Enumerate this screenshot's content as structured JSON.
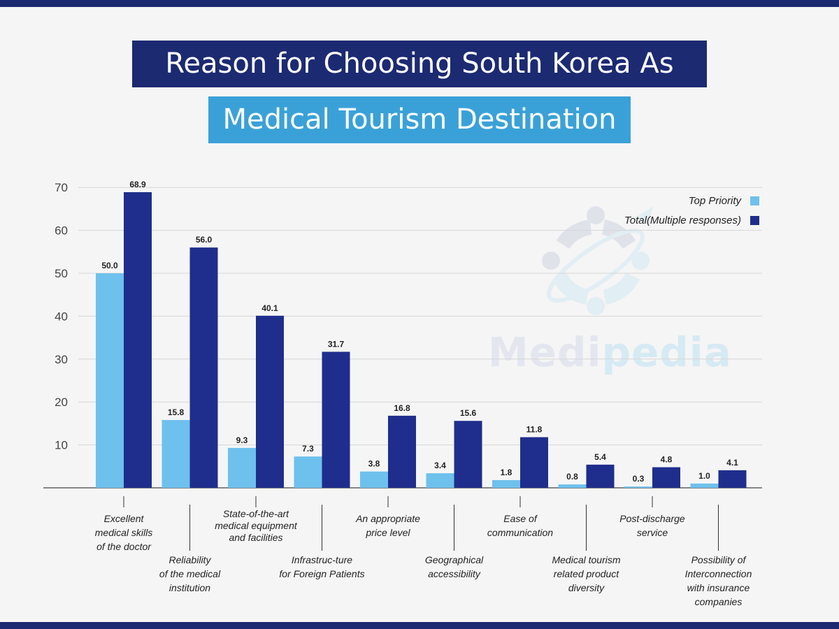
{
  "header": {
    "title_line1": "Reason for Choosing South Korea As",
    "title_line2": "Medical Tourism Destination"
  },
  "watermark": {
    "part1": "Medi",
    "part2": "pedia"
  },
  "colors": {
    "top_priority": "#6ec1ec",
    "total": "#1f2e8c",
    "title_dark": "#1c2a72",
    "title_light": "#3aa1d8"
  },
  "chart_data": {
    "type": "bar",
    "ylim": [
      0,
      70
    ],
    "yticks": [
      10,
      20,
      30,
      40,
      50,
      60,
      70
    ],
    "grid": true,
    "legend_position": "top-right",
    "categories": [
      [
        "Excellent",
        "medical skills",
        "of the doctor"
      ],
      [
        "Reliability",
        "of the medical",
        "institution"
      ],
      [
        "State-of-the-art",
        "medical equipment",
        "and facilities"
      ],
      [
        "Infrastruc-ture",
        "for Foreign Patients"
      ],
      [
        "An appropriate",
        "price level"
      ],
      [
        "Geographical",
        "accessibility"
      ],
      [
        "Ease of",
        "communication"
      ],
      [
        "Medical tourism",
        "related product",
        "diversity"
      ],
      [
        "Post-discharge",
        "service"
      ],
      [
        "Possibility of",
        "Interconnection",
        "with insurance",
        "companies"
      ]
    ],
    "series": [
      {
        "name": "Top Priority",
        "values": [
          50.0,
          15.8,
          9.3,
          7.3,
          3.8,
          3.4,
          1.8,
          0.8,
          0.3,
          1.0
        ],
        "labels": [
          "50.0",
          "15.8",
          "9.3",
          "7.3",
          "3.8",
          "3.4",
          "1.8",
          "0.8",
          "0.3",
          "1.0"
        ]
      },
      {
        "name": "Total(Multiple responses)",
        "values": [
          68.9,
          56.0,
          40.1,
          31.7,
          16.8,
          15.6,
          11.8,
          5.4,
          4.8,
          4.1
        ],
        "labels": [
          "68.9",
          "56.0",
          "40.1",
          "31.7",
          "16.8",
          "15.6",
          "11.8",
          "5.4",
          "4.8",
          "4.1"
        ]
      }
    ]
  }
}
